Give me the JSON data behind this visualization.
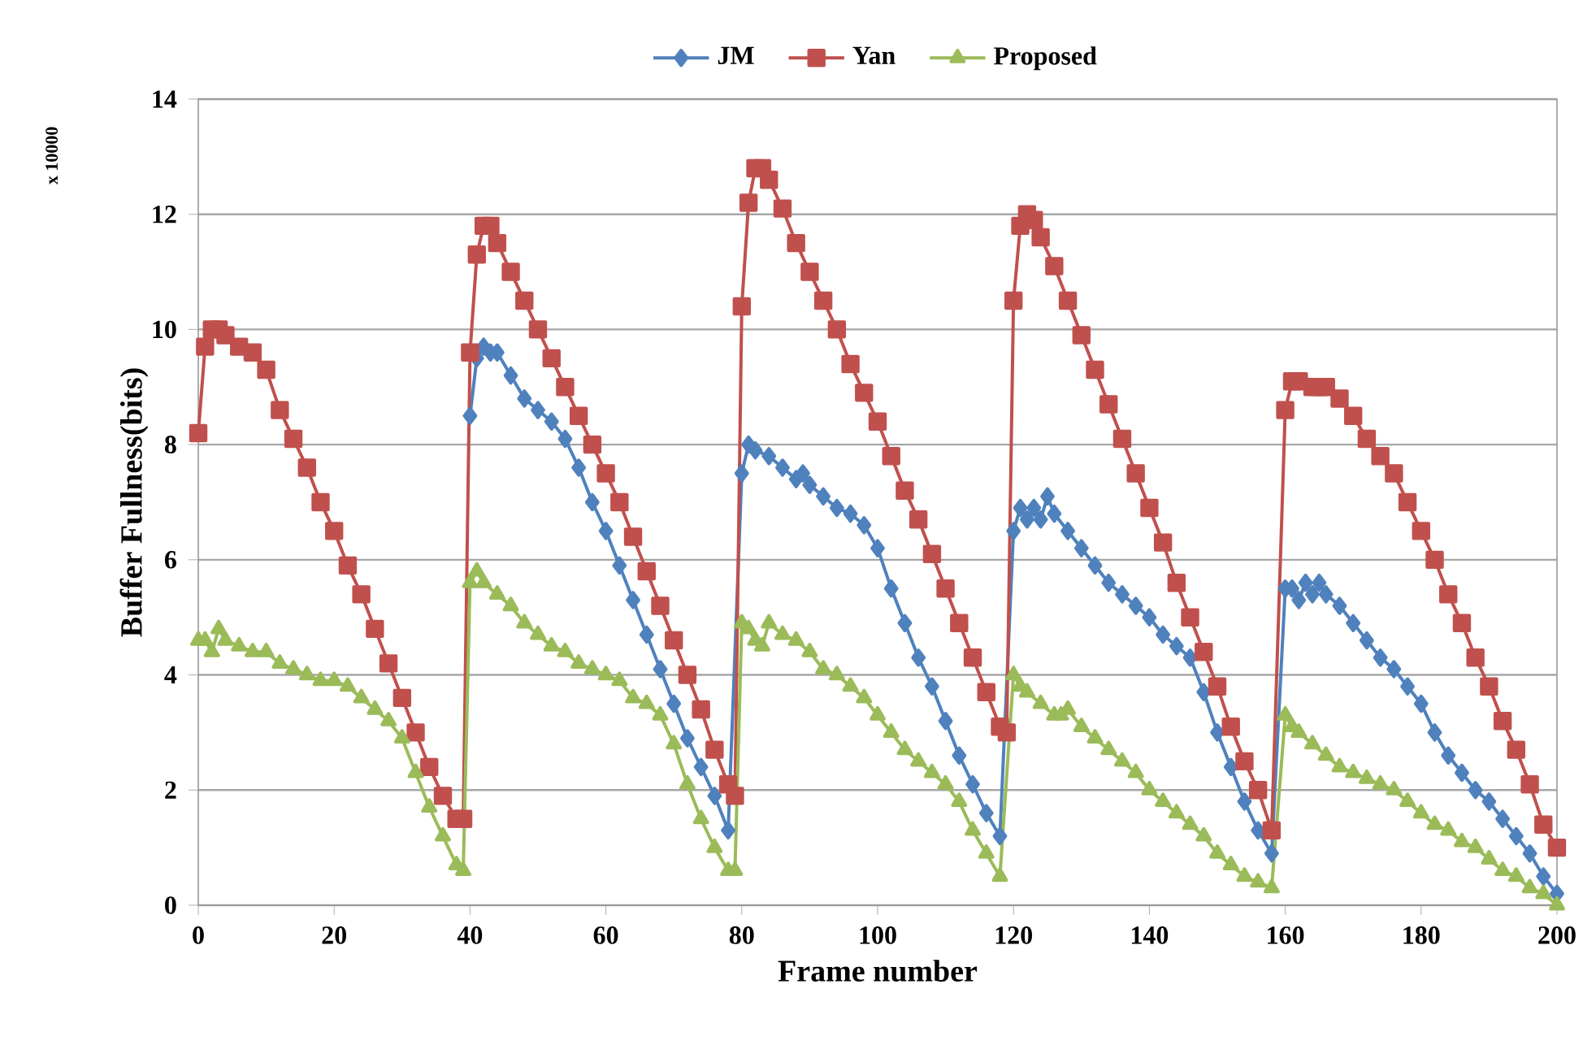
{
  "chart_data": {
    "type": "line",
    "xlabel": "Frame number",
    "ylabel": "Buffer Fullness(bits)",
    "annotations": [
      "x 10000"
    ],
    "xlim": [
      0,
      200
    ],
    "xticks": [
      0,
      20,
      40,
      60,
      80,
      100,
      120,
      140,
      160,
      180,
      200
    ],
    "ylim": [
      0,
      14
    ],
    "yticks": [
      0,
      2,
      4,
      6,
      8,
      10,
      12,
      14
    ],
    "grid": "y",
    "legend": "top",
    "line_style": "solid",
    "series": [
      {
        "name": "JM",
        "color": "#4f81bd",
        "marker": "diamond",
        "x": [
          40,
          41,
          42,
          43,
          44,
          46,
          48,
          50,
          52,
          54,
          56,
          58,
          60,
          62,
          64,
          66,
          68,
          70,
          72,
          74,
          76,
          78,
          80,
          81,
          82,
          84,
          86,
          88,
          89,
          90,
          92,
          94,
          96,
          98,
          100,
          102,
          104,
          106,
          108,
          110,
          112,
          114,
          116,
          118,
          120,
          121,
          122,
          123,
          124,
          125,
          126,
          128,
          130,
          132,
          134,
          136,
          138,
          140,
          142,
          144,
          146,
          148,
          150,
          152,
          154,
          156,
          158,
          160,
          161,
          162,
          163,
          164,
          165,
          166,
          168,
          170,
          172,
          174,
          176,
          178,
          180,
          182,
          184,
          186,
          188,
          190,
          192,
          194,
          196,
          198,
          200
        ],
        "values": [
          8.5,
          9.5,
          9.7,
          9.6,
          9.6,
          9.2,
          8.8,
          8.6,
          8.4,
          8.1,
          7.6,
          7.0,
          6.5,
          5.9,
          5.3,
          4.7,
          4.1,
          3.5,
          2.9,
          2.4,
          1.9,
          1.3,
          7.5,
          8.0,
          7.9,
          7.8,
          7.6,
          7.4,
          7.5,
          7.3,
          7.1,
          6.9,
          6.8,
          6.6,
          6.2,
          5.5,
          4.9,
          4.3,
          3.8,
          3.2,
          2.6,
          2.1,
          1.6,
          1.2,
          6.5,
          6.9,
          6.7,
          6.9,
          6.7,
          7.1,
          6.8,
          6.5,
          6.2,
          5.9,
          5.6,
          5.4,
          5.2,
          5.0,
          4.7,
          4.5,
          4.3,
          3.7,
          3.0,
          2.4,
          1.8,
          1.3,
          0.9,
          5.5,
          5.5,
          5.3,
          5.6,
          5.4,
          5.6,
          5.4,
          5.2,
          4.9,
          4.6,
          4.3,
          4.1,
          3.8,
          3.5,
          3.0,
          2.6,
          2.3,
          2.0,
          1.8,
          1.5,
          1.2,
          0.9,
          0.5,
          0.2
        ]
      },
      {
        "name": "Yan",
        "color": "#c0504d",
        "marker": "square",
        "x": [
          0,
          1,
          2,
          3,
          4,
          6,
          8,
          10,
          12,
          14,
          16,
          18,
          20,
          22,
          24,
          26,
          28,
          30,
          32,
          34,
          36,
          38,
          39,
          40,
          41,
          42,
          43,
          44,
          46,
          48,
          50,
          52,
          54,
          56,
          58,
          60,
          62,
          64,
          66,
          68,
          70,
          72,
          74,
          76,
          78,
          79,
          80,
          81,
          82,
          83,
          84,
          86,
          88,
          90,
          92,
          94,
          96,
          98,
          100,
          102,
          104,
          106,
          108,
          110,
          112,
          114,
          116,
          118,
          119,
          120,
          121,
          122,
          123,
          124,
          126,
          128,
          130,
          132,
          134,
          136,
          138,
          140,
          142,
          144,
          146,
          148,
          150,
          152,
          154,
          156,
          158,
          160,
          161,
          162,
          164,
          165,
          166,
          168,
          170,
          172,
          174,
          176,
          178,
          180,
          182,
          184,
          186,
          188,
          190,
          192,
          194,
          196,
          198,
          200
        ],
        "values": [
          8.2,
          9.7,
          10.0,
          10.0,
          9.9,
          9.7,
          9.6,
          9.3,
          8.6,
          8.1,
          7.6,
          7.0,
          6.5,
          5.9,
          5.4,
          4.8,
          4.2,
          3.6,
          3.0,
          2.4,
          1.9,
          1.5,
          1.5,
          9.6,
          11.3,
          11.8,
          11.8,
          11.5,
          11.0,
          10.5,
          10.0,
          9.5,
          9.0,
          8.5,
          8.0,
          7.5,
          7.0,
          6.4,
          5.8,
          5.2,
          4.6,
          4.0,
          3.4,
          2.7,
          2.1,
          1.9,
          10.4,
          12.2,
          12.8,
          12.8,
          12.6,
          12.1,
          11.5,
          11.0,
          10.5,
          10.0,
          9.4,
          8.9,
          8.4,
          7.8,
          7.2,
          6.7,
          6.1,
          5.5,
          4.9,
          4.3,
          3.7,
          3.1,
          3.0,
          10.5,
          11.8,
          12.0,
          11.9,
          11.6,
          11.1,
          10.5,
          9.9,
          9.3,
          8.7,
          8.1,
          7.5,
          6.9,
          6.3,
          5.6,
          5.0,
          4.4,
          3.8,
          3.1,
          2.5,
          2.0,
          1.3,
          8.6,
          9.1,
          9.1,
          9.0,
          9.0,
          9.0,
          8.8,
          8.5,
          8.1,
          7.8,
          7.5,
          7.0,
          6.5,
          6.0,
          5.4,
          4.9,
          4.3,
          3.8,
          3.2,
          2.7,
          2.1,
          1.4,
          1.0
        ]
      },
      {
        "name": "Proposed",
        "color": "#9bbb59",
        "marker": "triangle",
        "x": [
          0,
          1,
          2,
          3,
          4,
          6,
          8,
          10,
          12,
          14,
          16,
          18,
          20,
          22,
          24,
          26,
          28,
          30,
          32,
          34,
          36,
          38,
          39,
          40,
          41,
          42,
          44,
          46,
          48,
          50,
          52,
          54,
          56,
          58,
          60,
          62,
          64,
          66,
          68,
          70,
          72,
          74,
          76,
          78,
          79,
          80,
          81,
          82,
          83,
          84,
          86,
          88,
          90,
          92,
          94,
          96,
          98,
          100,
          102,
          104,
          106,
          108,
          110,
          112,
          114,
          116,
          118,
          120,
          121,
          122,
          124,
          126,
          127,
          128,
          130,
          132,
          134,
          136,
          138,
          140,
          142,
          144,
          146,
          148,
          150,
          152,
          154,
          156,
          158,
          160,
          161,
          162,
          164,
          166,
          168,
          170,
          172,
          174,
          176,
          178,
          180,
          182,
          184,
          186,
          188,
          190,
          192,
          194,
          196,
          198,
          200
        ],
        "values": [
          4.6,
          4.6,
          4.4,
          4.8,
          4.6,
          4.5,
          4.4,
          4.4,
          4.2,
          4.1,
          4.0,
          3.9,
          3.9,
          3.8,
          3.6,
          3.4,
          3.2,
          2.9,
          2.3,
          1.7,
          1.2,
          0.7,
          0.6,
          5.6,
          5.8,
          5.6,
          5.4,
          5.2,
          4.9,
          4.7,
          4.5,
          4.4,
          4.2,
          4.1,
          4.0,
          3.9,
          3.6,
          3.5,
          3.3,
          2.8,
          2.1,
          1.5,
          1.0,
          0.6,
          0.6,
          4.9,
          4.8,
          4.6,
          4.5,
          4.9,
          4.7,
          4.6,
          4.4,
          4.1,
          4.0,
          3.8,
          3.6,
          3.3,
          3.0,
          2.7,
          2.5,
          2.3,
          2.1,
          1.8,
          1.3,
          0.9,
          0.5,
          4.0,
          3.8,
          3.7,
          3.5,
          3.3,
          3.3,
          3.4,
          3.1,
          2.9,
          2.7,
          2.5,
          2.3,
          2.0,
          1.8,
          1.6,
          1.4,
          1.2,
          0.9,
          0.7,
          0.5,
          0.4,
          0.3,
          3.3,
          3.1,
          3.0,
          2.8,
          2.6,
          2.4,
          2.3,
          2.2,
          2.1,
          2.0,
          1.8,
          1.6,
          1.4,
          1.3,
          1.1,
          1.0,
          0.8,
          0.6,
          0.5,
          0.3,
          0.2,
          0.0
        ]
      }
    ]
  }
}
